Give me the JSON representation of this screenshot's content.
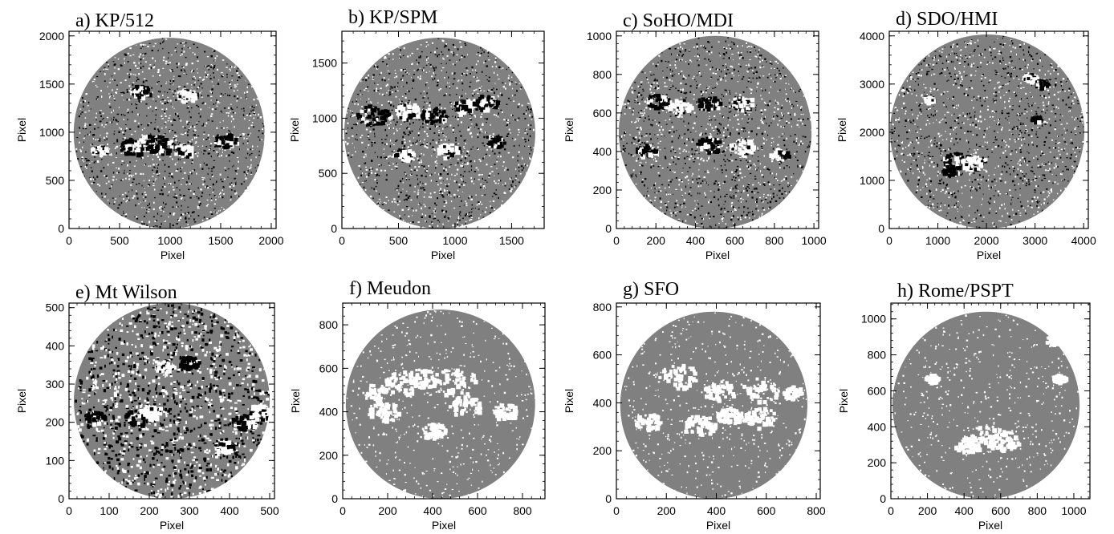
{
  "panels": [
    {
      "title": "a) KP/512",
      "xlabel": "Pixel",
      "ylabel": "Pixel",
      "xticks": [
        "0",
        "500",
        "1000",
        "1500",
        "2000"
      ],
      "yticks": [
        "0",
        "500",
        "1000",
        "1500",
        "2000"
      ],
      "axis_max": 2048,
      "disk_max": 1980,
      "colors": "bipolar",
      "render": "smooth"
    },
    {
      "title": "b) KP/SPM",
      "xlabel": "Pixel",
      "ylabel": "Pixel",
      "xticks": [
        "0",
        "500",
        "1000",
        "1500"
      ],
      "yticks": [
        "0",
        "500",
        "1000",
        "1500"
      ],
      "axis_max": 1788,
      "disk_max": 1730,
      "colors": "bipolar",
      "render": "smooth"
    },
    {
      "title": "c) SoHO/MDI",
      "xlabel": "Pixel",
      "ylabel": "Pixel",
      "xticks": [
        "0",
        "200",
        "400",
        "600",
        "800",
        "1000"
      ],
      "yticks": [
        "0",
        "200",
        "400",
        "600",
        "800",
        "1000"
      ],
      "axis_max": 1024,
      "disk_max": 1000,
      "colors": "bipolar",
      "render": "smooth"
    },
    {
      "title": "d) SDO/HMI",
      "xlabel": "Pixel",
      "ylabel": "Pixel",
      "xticks": [
        "0",
        "1000",
        "2000",
        "3000",
        "4000"
      ],
      "yticks": [
        "0",
        "1000",
        "2000",
        "3000",
        "4000"
      ],
      "axis_max": 4096,
      "disk_max": 4030,
      "colors": "bipolar",
      "render": "smooth"
    },
    {
      "title": "e) Mt Wilson",
      "xlabel": "Pixel",
      "ylabel": "Pixel",
      "xticks": [
        "0",
        "100",
        "200",
        "300",
        "400",
        "500"
      ],
      "yticks": [
        "0",
        "100",
        "200",
        "300",
        "400",
        "500"
      ],
      "axis_max": 512,
      "disk_max": 512,
      "colors": "bipolar",
      "render": "pixelated"
    },
    {
      "title": "f) Meudon",
      "xlabel": "Pixel",
      "ylabel": "Pixel",
      "xticks": [
        "0",
        "200",
        "400",
        "600",
        "800"
      ],
      "yticks": [
        "0",
        "200",
        "400",
        "600",
        "800"
      ],
      "axis_max": 900,
      "disk_max": 870,
      "colors": "unipolar",
      "render": "smooth"
    },
    {
      "title": "g) SFO",
      "xlabel": "Pixel",
      "ylabel": "Pixel",
      "xticks": [
        "0",
        "200",
        "400",
        "600",
        "800"
      ],
      "yticks": [
        "0",
        "200",
        "400",
        "600",
        "800"
      ],
      "axis_max": 816,
      "disk_max": 780,
      "colors": "unipolar",
      "render": "smooth"
    },
    {
      "title": "h) Rome/PSPT",
      "xlabel": "Pixel",
      "ylabel": "Pixel",
      "xticks": [
        "0",
        "200",
        "400",
        "600",
        "800",
        "1000"
      ],
      "yticks": [
        "0",
        "200",
        "400",
        "600",
        "800",
        "1000"
      ],
      "axis_max": 1088,
      "disk_max": 1040,
      "colors": "unipolar",
      "render": "smooth"
    }
  ],
  "colors": {
    "disk": "#808080",
    "positive": "#ffffff",
    "negative": "#000000",
    "frame": "#000000"
  }
}
